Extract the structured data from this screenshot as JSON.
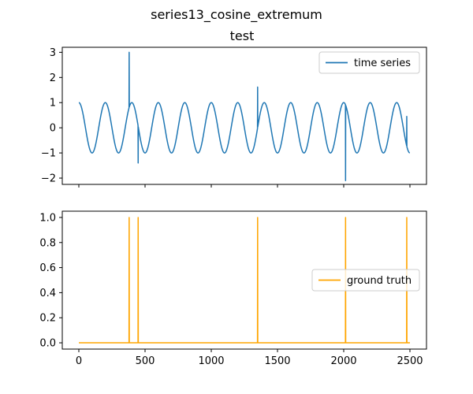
{
  "figure": {
    "suptitle": "series13_cosine_extremum"
  },
  "colors": {
    "time_series": "#1f77b4",
    "ground_truth": "#ffa500",
    "axes": "#000000",
    "legend_border": "#cccccc"
  },
  "chart_data": [
    {
      "type": "line",
      "title": "test",
      "xlim": [
        -125,
        2625
      ],
      "ylim": [
        -2.25,
        3.2
      ],
      "xticks": [
        0,
        500,
        1000,
        1500,
        2000,
        2500
      ],
      "xticklabels_visible": false,
      "yticks": [
        -2,
        -1,
        0,
        1,
        2,
        3
      ],
      "yticklabels": [
        "−2",
        "−1",
        "0",
        "1",
        "2",
        "3"
      ],
      "grid": false,
      "legend": {
        "position": "upper right"
      },
      "series": [
        {
          "name": "time series",
          "generator": {
            "kind": "cosine",
            "n_points": 2500,
            "period": 200,
            "amplitude": 1.0,
            "offset": 0.0
          },
          "anomalies": [
            {
              "x": 380,
              "y": 3.0
            },
            {
              "x": 448,
              "y": -1.4
            },
            {
              "x": 1350,
              "y": 1.62
            },
            {
              "x": 2014,
              "y": -2.1
            },
            {
              "x": 2476,
              "y": 0.45
            }
          ]
        }
      ]
    },
    {
      "type": "line",
      "title": "",
      "xlim": [
        -125,
        2625
      ],
      "ylim": [
        -0.05,
        1.05
      ],
      "xticks": [
        0,
        500,
        1000,
        1500,
        2000,
        2500
      ],
      "xticklabels": [
        "0",
        "500",
        "1000",
        "1500",
        "2000",
        "2500"
      ],
      "yticks": [
        0.0,
        0.2,
        0.4,
        0.6,
        0.8,
        1.0
      ],
      "yticklabels": [
        "0.0",
        "0.2",
        "0.4",
        "0.6",
        "0.8",
        "1.0"
      ],
      "grid": false,
      "legend": {
        "position": "center right"
      },
      "series": [
        {
          "name": "ground truth",
          "x_range": [
            0,
            2500
          ],
          "baseline": 0,
          "spikes": [
            380,
            448,
            1350,
            2014,
            2476
          ],
          "spike_value": 1
        }
      ]
    }
  ]
}
